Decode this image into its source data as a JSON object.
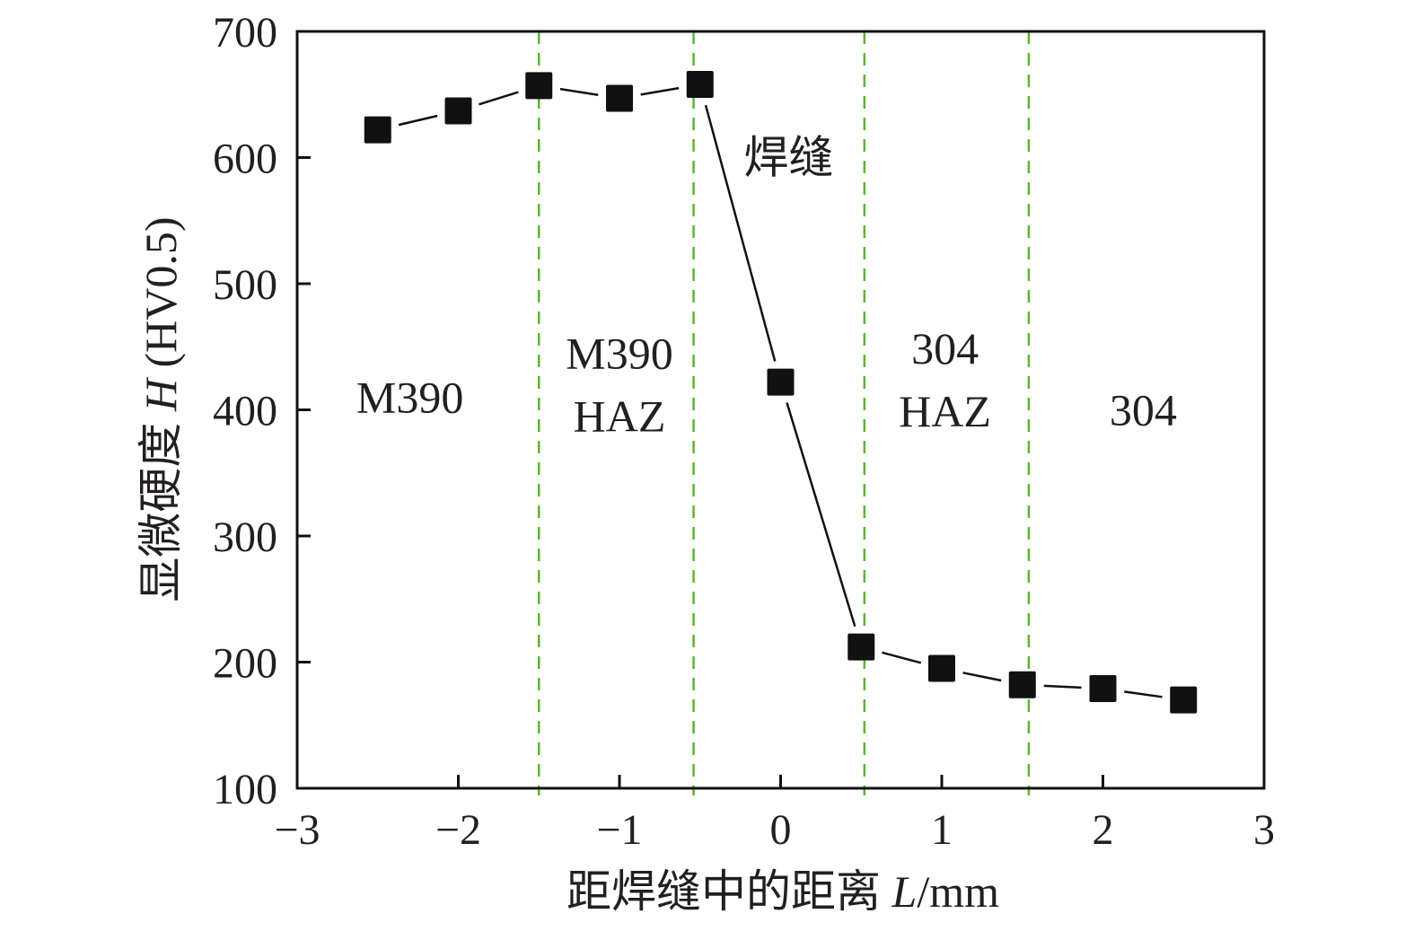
{
  "chart_data": {
    "type": "line",
    "title": "",
    "xlabel": "距焊缝中的距离 ",
    "xlabel_var": "L",
    "xlabel_unit": "/mm",
    "ylabel": "显微硬度 ",
    "ylabel_var": "H",
    "ylabel_unit": " (HV0.5)",
    "xlim": [
      -3,
      3
    ],
    "ylim": [
      100,
      700
    ],
    "xticks": [
      -3,
      -2,
      -1,
      0,
      1,
      2,
      3
    ],
    "xtick_labels": [
      "−3",
      "−2",
      "−1",
      "0",
      "1",
      "2",
      "3"
    ],
    "yticks": [
      100,
      200,
      300,
      400,
      500,
      600,
      700
    ],
    "ytick_labels": [
      "100",
      "200",
      "300",
      "400",
      "500",
      "600",
      "700"
    ],
    "grid": false,
    "series": [
      {
        "name": "hardness",
        "marker": "square",
        "color": "#111111",
        "x": [
          -2.5,
          -2,
          -1.5,
          -1,
          -0.5,
          0,
          0.5,
          1,
          1.5,
          2,
          2.5
        ],
        "y": [
          622,
          637,
          657,
          647,
          658,
          422,
          212,
          195,
          182,
          179,
          170
        ]
      }
    ],
    "boundaries": {
      "color": "#5cb531",
      "x": [
        -1.5,
        -0.54,
        0.52,
        1.54
      ]
    },
    "annotations": [
      {
        "lines": [
          "M390"
        ],
        "x": -2.3,
        "y": 410
      },
      {
        "lines": [
          "M390",
          "HAZ"
        ],
        "x": -1.0,
        "y": 420
      },
      {
        "lines": [
          "焊缝"
        ],
        "x": 0.05,
        "y": 600
      },
      {
        "lines": [
          "304",
          "HAZ"
        ],
        "x": 1.02,
        "y": 424
      },
      {
        "lines": [
          "304"
        ],
        "x": 2.25,
        "y": 400
      }
    ]
  }
}
